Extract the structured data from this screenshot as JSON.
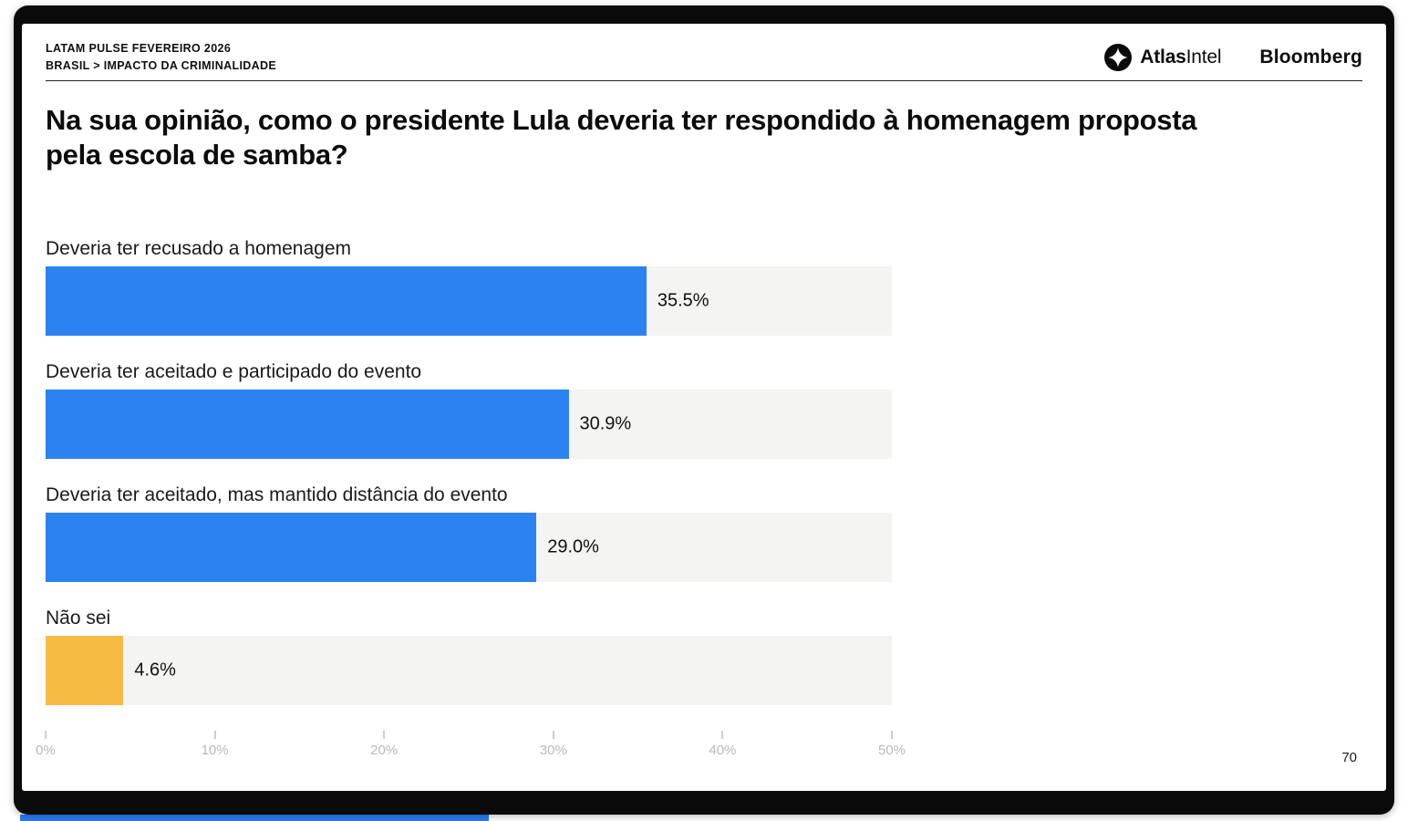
{
  "header": {
    "line1": "LATAM PULSE FEVEREIRO 2026",
    "line2": "BRASIL > IMPACTO DA CRIMINALIDADE",
    "brands": {
      "atlas_bold": "Atlas",
      "atlas_rest": "Intel",
      "bloomberg": "Bloomberg"
    }
  },
  "title": "Na sua opinião, como o presidente Lula deveria ter respondido à homenagem proposta pela escola de samba?",
  "page_number": "70",
  "colors": {
    "bar_blue": "#2b83f2",
    "bar_yellow": "#f6bb43",
    "track": "#f4f4f2",
    "accent_strip": "#2b7cf0"
  },
  "chart_data": {
    "type": "bar",
    "orientation": "horizontal",
    "title": "Na sua opinião, como o presidente Lula deveria ter respondido à homenagem proposta pela escola de samba?",
    "categories": [
      "Deveria ter recusado a homenagem",
      "Deveria ter aceitado e participado do evento",
      "Deveria ter aceitado, mas mantido distância do evento",
      "Não sei"
    ],
    "values": [
      35.5,
      30.9,
      29.0,
      4.6
    ],
    "value_labels": [
      "35.5%",
      "30.9%",
      "29.0%",
      "4.6%"
    ],
    "bar_colors": [
      "#2b83f2",
      "#2b83f2",
      "#2b83f2",
      "#f6bb43"
    ],
    "track_color": "#f4f4f2",
    "xlabel": "",
    "ylabel": "",
    "xlim": [
      0,
      50
    ],
    "x_ticks": [
      "0%",
      "10%",
      "20%",
      "30%",
      "40%",
      "50%"
    ],
    "grid": false,
    "legend": "none"
  }
}
